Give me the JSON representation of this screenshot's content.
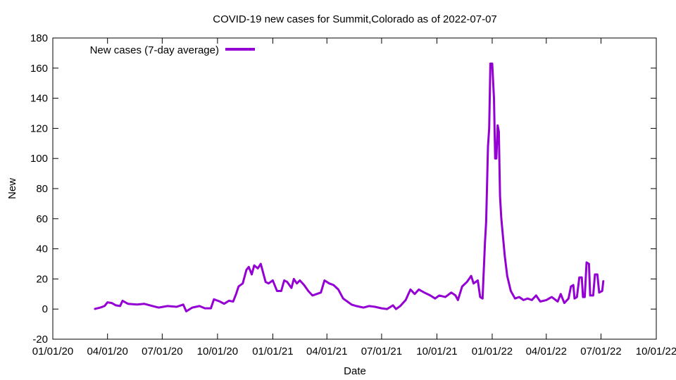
{
  "chart_data": {
    "type": "line",
    "title": "COVID-19 new cases for Summit,Colorado as of 2022-07-07",
    "xlabel": "Date",
    "ylabel": "New",
    "xlim": [
      "2020-01-01",
      "2022-10-01"
    ],
    "ylim": [
      -20,
      180
    ],
    "x_ticks": [
      "01/01/20",
      "04/01/20",
      "07/01/20",
      "10/01/20",
      "01/01/21",
      "04/01/21",
      "07/01/21",
      "10/01/21",
      "01/01/22",
      "04/01/22",
      "07/01/22",
      "10/01/22"
    ],
    "y_ticks": [
      -20,
      0,
      20,
      40,
      60,
      80,
      100,
      120,
      140,
      160,
      180
    ],
    "legend_position": "top-left",
    "series": [
      {
        "name": "New cases (7-day average)",
        "color": "#9400d3",
        "points": [
          [
            "2020-03-10",
            0
          ],
          [
            "2020-03-20",
            1
          ],
          [
            "2020-03-27",
            2
          ],
          [
            "2020-04-01",
            4.5
          ],
          [
            "2020-04-08",
            4
          ],
          [
            "2020-04-15",
            2.5
          ],
          [
            "2020-04-22",
            2
          ],
          [
            "2020-04-26",
            5.5
          ],
          [
            "2020-05-05",
            3.5
          ],
          [
            "2020-05-20",
            3
          ],
          [
            "2020-06-01",
            3.5
          ],
          [
            "2020-06-15",
            2
          ],
          [
            "2020-06-25",
            1
          ],
          [
            "2020-07-10",
            2
          ],
          [
            "2020-07-25",
            1.5
          ],
          [
            "2020-08-05",
            3
          ],
          [
            "2020-08-10",
            -1.5
          ],
          [
            "2020-08-20",
            1
          ],
          [
            "2020-09-01",
            2
          ],
          [
            "2020-09-10",
            0.5
          ],
          [
            "2020-09-20",
            0.5
          ],
          [
            "2020-09-25",
            6.5
          ],
          [
            "2020-10-05",
            5
          ],
          [
            "2020-10-12",
            3.5
          ],
          [
            "2020-10-20",
            5.5
          ],
          [
            "2020-10-27",
            5
          ],
          [
            "2020-11-01",
            10
          ],
          [
            "2020-11-05",
            15
          ],
          [
            "2020-11-12",
            17
          ],
          [
            "2020-11-18",
            26
          ],
          [
            "2020-11-22",
            28
          ],
          [
            "2020-11-27",
            23
          ],
          [
            "2020-12-01",
            29
          ],
          [
            "2020-12-07",
            27
          ],
          [
            "2020-12-12",
            30
          ],
          [
            "2020-12-20",
            18
          ],
          [
            "2020-12-25",
            17
          ],
          [
            "2021-01-01",
            19
          ],
          [
            "2021-01-08",
            12
          ],
          [
            "2021-01-15",
            12
          ],
          [
            "2021-01-20",
            19
          ],
          [
            "2021-01-25",
            18
          ],
          [
            "2021-02-01",
            14
          ],
          [
            "2021-02-05",
            20
          ],
          [
            "2021-02-10",
            17
          ],
          [
            "2021-02-15",
            19
          ],
          [
            "2021-02-22",
            16
          ],
          [
            "2021-03-01",
            12
          ],
          [
            "2021-03-08",
            9
          ],
          [
            "2021-03-15",
            10
          ],
          [
            "2021-03-22",
            11
          ],
          [
            "2021-03-28",
            19
          ],
          [
            "2021-04-05",
            17
          ],
          [
            "2021-04-12",
            16
          ],
          [
            "2021-04-20",
            13
          ],
          [
            "2021-04-28",
            7
          ],
          [
            "2021-05-05",
            5
          ],
          [
            "2021-05-12",
            3
          ],
          [
            "2021-05-20",
            2
          ],
          [
            "2021-06-01",
            1
          ],
          [
            "2021-06-10",
            2
          ],
          [
            "2021-06-20",
            1.5
          ],
          [
            "2021-07-01",
            0.5
          ],
          [
            "2021-07-10",
            0
          ],
          [
            "2021-07-20",
            2.5
          ],
          [
            "2021-07-25",
            0
          ],
          [
            "2021-08-01",
            2
          ],
          [
            "2021-08-10",
            6
          ],
          [
            "2021-08-18",
            13
          ],
          [
            "2021-08-25",
            10
          ],
          [
            "2021-09-01",
            13
          ],
          [
            "2021-09-10",
            11
          ],
          [
            "2021-09-20",
            9
          ],
          [
            "2021-09-28",
            7
          ],
          [
            "2021-10-05",
            9
          ],
          [
            "2021-10-15",
            8
          ],
          [
            "2021-10-25",
            11
          ],
          [
            "2021-11-01",
            9
          ],
          [
            "2021-11-05",
            6
          ],
          [
            "2021-11-12",
            15
          ],
          [
            "2021-11-20",
            18
          ],
          [
            "2021-11-27",
            22
          ],
          [
            "2021-12-01",
            17
          ],
          [
            "2021-12-08",
            19
          ],
          [
            "2021-12-12",
            8
          ],
          [
            "2021-12-16",
            7
          ],
          [
            "2021-12-20",
            44
          ],
          [
            "2021-12-22",
            58
          ],
          [
            "2021-12-25",
            108
          ],
          [
            "2021-12-27",
            120
          ],
          [
            "2021-12-29",
            163
          ],
          [
            "2022-01-01",
            163
          ],
          [
            "2022-01-04",
            140
          ],
          [
            "2022-01-06",
            100
          ],
          [
            "2022-01-08",
            100
          ],
          [
            "2022-01-10",
            122
          ],
          [
            "2022-01-12",
            118
          ],
          [
            "2022-01-14",
            75
          ],
          [
            "2022-01-16",
            61
          ],
          [
            "2022-01-18",
            52
          ],
          [
            "2022-01-22",
            35
          ],
          [
            "2022-01-26",
            22
          ],
          [
            "2022-02-01",
            12
          ],
          [
            "2022-02-08",
            7
          ],
          [
            "2022-02-15",
            8
          ],
          [
            "2022-02-22",
            6
          ],
          [
            "2022-03-01",
            7
          ],
          [
            "2022-03-08",
            6
          ],
          [
            "2022-03-15",
            9
          ],
          [
            "2022-03-22",
            5
          ],
          [
            "2022-04-01",
            6
          ],
          [
            "2022-04-10",
            8
          ],
          [
            "2022-04-20",
            5
          ],
          [
            "2022-04-25",
            10
          ],
          [
            "2022-05-01",
            4
          ],
          [
            "2022-05-08",
            7
          ],
          [
            "2022-05-12",
            15
          ],
          [
            "2022-05-16",
            16
          ],
          [
            "2022-05-18",
            7
          ],
          [
            "2022-05-22",
            8
          ],
          [
            "2022-05-26",
            21
          ],
          [
            "2022-05-30",
            21
          ],
          [
            "2022-06-01",
            8
          ],
          [
            "2022-06-04",
            8
          ],
          [
            "2022-06-07",
            31
          ],
          [
            "2022-06-11",
            30
          ],
          [
            "2022-06-13",
            9
          ],
          [
            "2022-06-18",
            9
          ],
          [
            "2022-06-21",
            23
          ],
          [
            "2022-06-25",
            23
          ],
          [
            "2022-06-28",
            11
          ],
          [
            "2022-07-03",
            12
          ],
          [
            "2022-07-05",
            19
          ]
        ]
      }
    ]
  }
}
